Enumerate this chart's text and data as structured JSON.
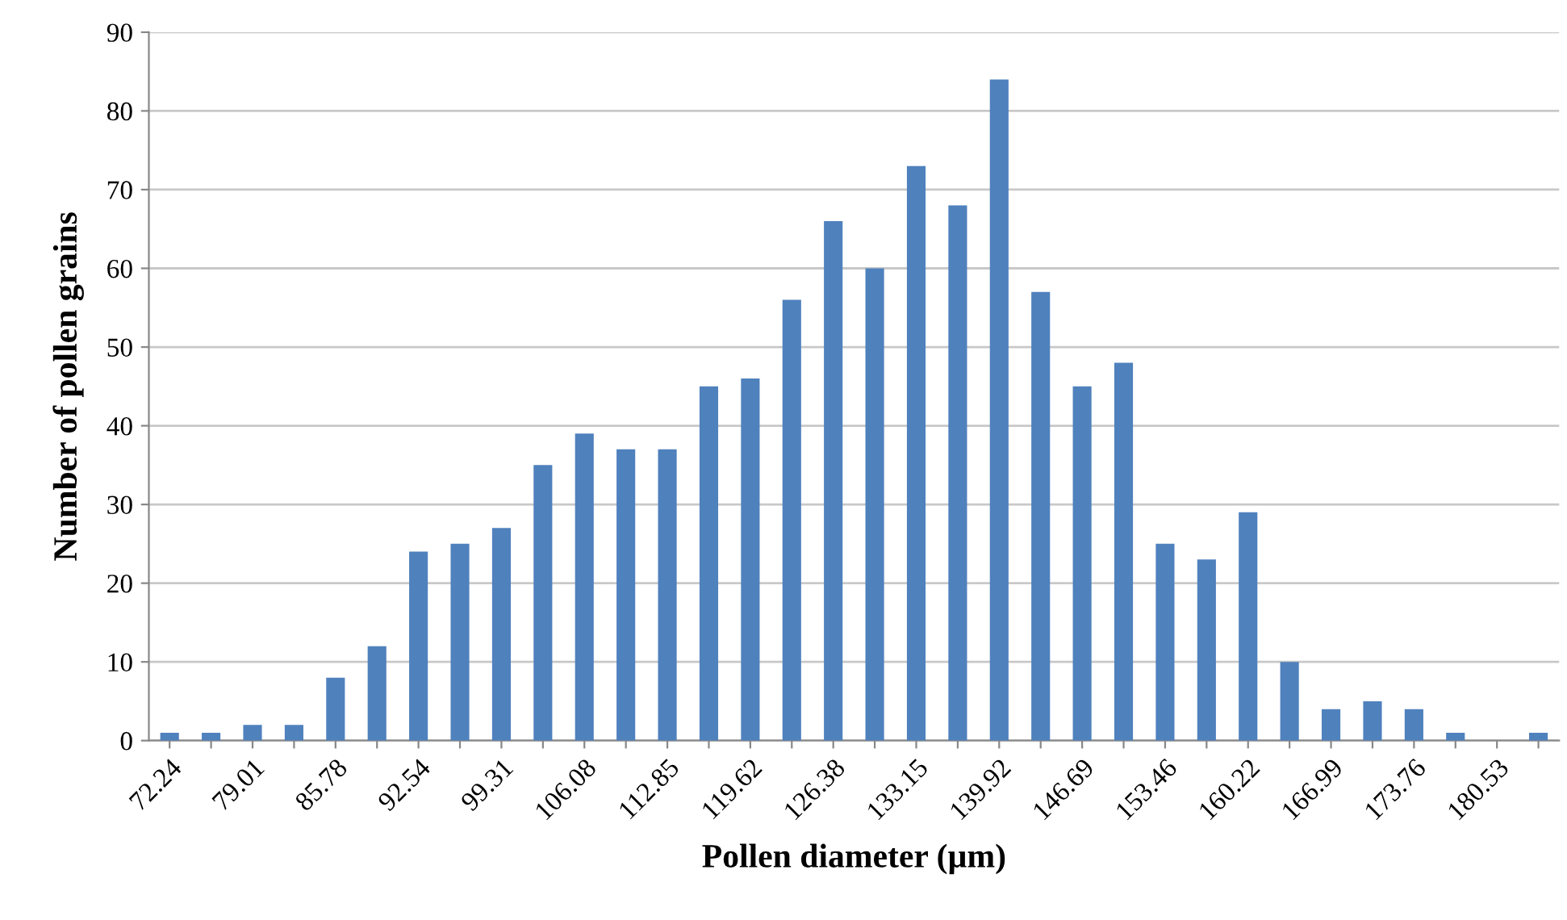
{
  "chart_data": {
    "type": "bar",
    "xlabel": "Pollen diameter (µm)",
    "ylabel": "Number of pollen grains",
    "categories": [
      "72.24",
      null,
      "79.01",
      null,
      "85.78",
      null,
      "92.54",
      null,
      "99.31",
      null,
      "106.08",
      null,
      "112.85",
      null,
      "119.62",
      null,
      "126.38",
      null,
      "133.15",
      null,
      "139.92",
      null,
      "146.69",
      null,
      "153.46",
      null,
      "160.22",
      null,
      "166.99",
      null,
      "173.76",
      null,
      "180.53",
      null
    ],
    "values": [
      1,
      1,
      2,
      2,
      8,
      12,
      24,
      25,
      27,
      35,
      39,
      37,
      37,
      45,
      46,
      56,
      66,
      60,
      73,
      68,
      84,
      57,
      45,
      48,
      25,
      23,
      29,
      10,
      4,
      5,
      4,
      1,
      0,
      1
    ],
    "color": "#4f81bd",
    "ylim": [
      0,
      90
    ],
    "yticks": [
      0,
      10,
      20,
      30,
      40,
      50,
      60,
      70,
      80,
      90
    ],
    "grid": "y",
    "legend": false
  }
}
